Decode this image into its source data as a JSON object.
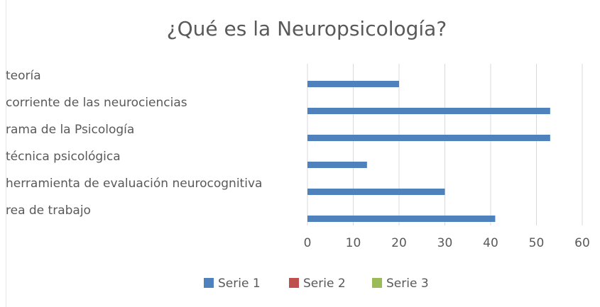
{
  "chart_data": {
    "type": "bar",
    "orientation": "horizontal",
    "title": "¿Qué es la Neuropsicología?",
    "categories": [
      "teoría",
      "corriente de las neurociencias",
      "rama de la Psicología",
      "técnica psicológica",
      "herramienta de evaluación neurocognitiva",
      "rea de trabajo"
    ],
    "series": [
      {
        "name": "Serie 1",
        "color": "#4f81bd",
        "values": [
          20,
          53,
          53,
          13,
          30,
          41
        ]
      },
      {
        "name": "Serie 2",
        "color": "#c0504d",
        "values": [
          null,
          null,
          null,
          null,
          null,
          null
        ]
      },
      {
        "name": "Serie 3",
        "color": "#9bbb59",
        "values": [
          null,
          null,
          null,
          null,
          null,
          null
        ]
      }
    ],
    "xlim": [
      0,
      60
    ],
    "xticks": [
      0,
      10,
      20,
      30,
      40,
      50,
      60
    ],
    "grid": true,
    "legend": "bottom"
  }
}
